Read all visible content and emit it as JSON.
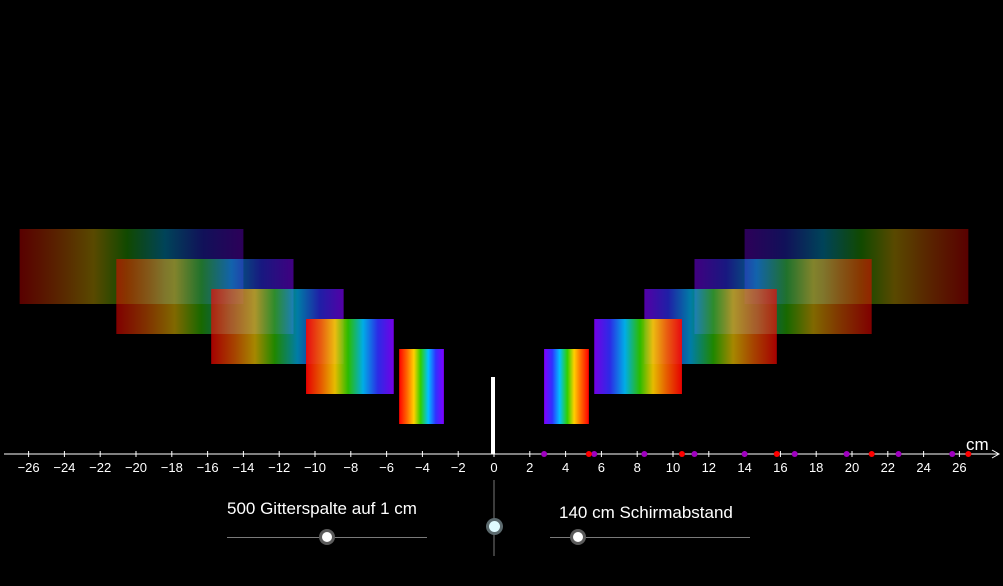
{
  "unit_label": "cm",
  "axis": {
    "tick_labels": [
      "−26",
      "−24",
      "−22",
      "−20",
      "−18",
      "−16",
      "−14",
      "−12",
      "−10",
      "−8",
      "−6",
      "−4",
      "−2",
      "0",
      "2",
      "4",
      "6",
      "8",
      "10",
      "12",
      "14",
      "16",
      "18",
      "20",
      "22",
      "24",
      "26"
    ],
    "tick_values": [
      -26,
      -24,
      -22,
      -20,
      -18,
      -16,
      -14,
      -12,
      -10,
      -8,
      -6,
      -4,
      -2,
      0,
      2,
      4,
      6,
      8,
      10,
      12,
      14,
      16,
      18,
      20,
      22,
      24,
      26
    ]
  },
  "controls": {
    "grating_label": "500 Gitterspalte auf 1 cm",
    "screen_label": "140 cm Schirmabstand",
    "grating_slider_level": 0.5,
    "screen_slider_level": 0.14
  },
  "colors": {
    "background": "#000000",
    "axis": "#ffffff",
    "red_marker": "#ff0000",
    "violet_marker": "#a000c0"
  },
  "spectra_orders": [
    1,
    2,
    3,
    4,
    5
  ],
  "markers": {
    "red_positions": [
      5.3,
      10.5,
      15.8,
      21.1,
      26.5
    ],
    "violet_positions": [
      2.8,
      5.6,
      8.4,
      11.2,
      14.0,
      16.8,
      19.7,
      22.6,
      25.6
    ]
  }
}
